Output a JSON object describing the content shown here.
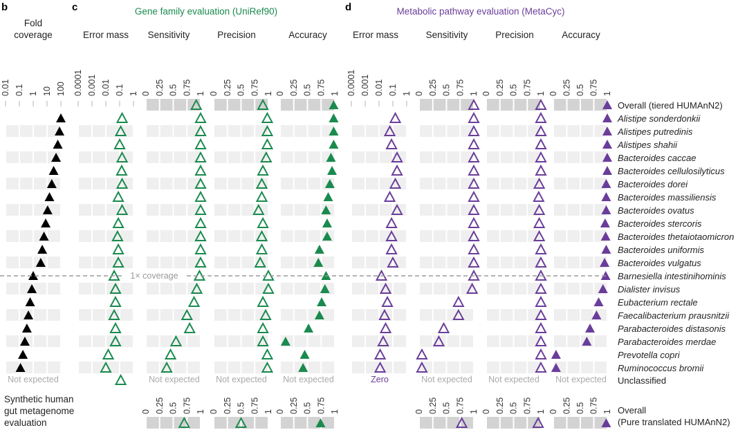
{
  "panels": {
    "b": {
      "letter": "b",
      "title_line1": "Fold",
      "title_line2": "coverage"
    },
    "c": {
      "letter": "c",
      "title": "Gene family evaluation (UniRef90)",
      "color": "#1a8a4e"
    },
    "d": {
      "letter": "d",
      "title": "Metabolic pathway evaluation (MetaCyc)",
      "color": "#6a3d9a"
    }
  },
  "metric_headers": {
    "c": [
      "Error mass",
      "Sensitivity",
      "Precision",
      "Accuracy"
    ],
    "d": [
      "Error mass",
      "Sensitivity",
      "Precision",
      "Accuracy"
    ]
  },
  "ticks": {
    "log_fold": [
      "0.01",
      "0.1",
      "1",
      "10",
      "100"
    ],
    "log_error": [
      "0.0001",
      "0.001",
      "0.01",
      "0.1",
      "1"
    ],
    "linear": [
      "0",
      "0.25",
      "0.5",
      "0.75",
      "1"
    ]
  },
  "coverage_line_label": "1× coverage",
  "not_expected_label": "Not expected",
  "zero_label": "Zero",
  "bottom": {
    "caption_line1": "Synthetic human",
    "caption_line2": "gut metagenome",
    "caption_line3": "evaluation",
    "row_label_line1": "Overall",
    "row_label_line2": "(Pure translated HUMAnN2)"
  },
  "chart_data": {
    "type": "scatter",
    "title": "Synthetic human gut metagenome evaluation",
    "rows": [
      "Overall (tiered HUMAnN2)",
      "Alistipe sonderdonkii",
      "Alistipes putredinis",
      "Alistipes shahii",
      "Bacteroides caccae",
      "Bacteroides cellulosilyticus",
      "Bacteroides dorei",
      "Bacteroides massiliensis",
      "Bacteroides ovatus",
      "Bacteroides stercoris",
      "Bacteroides thetaiotaomicron",
      "Bacteroides uniformis",
      "Bacteroides vulgatus",
      "Barnesiella intestinihominis",
      "Dialister invisus",
      "Eubacterium rectale",
      "Faecalibacterium prausnitzii",
      "Parabacteroides distasonis",
      "Parabacteroides merdae",
      "Prevotella copri",
      "Ruminococcus bromii",
      "Unclassified"
    ],
    "italic_rows": [
      false,
      true,
      true,
      true,
      true,
      true,
      true,
      true,
      true,
      true,
      true,
      true,
      true,
      true,
      true,
      true,
      true,
      true,
      true,
      true,
      true,
      false
    ],
    "fold_coverage": {
      "scale": "log",
      "xlim": [
        0.01,
        100
      ],
      "values": [
        null,
        100,
        80,
        60,
        45,
        30,
        22,
        15,
        11,
        8,
        6,
        4.5,
        3.5,
        1.0,
        0.8,
        0.6,
        0.45,
        0.35,
        0.25,
        0.18,
        0.12,
        null
      ]
    },
    "series": [
      {
        "name": "Gene family Error mass",
        "panel": "c",
        "scale": "log",
        "xlim": [
          0.0001,
          1
        ],
        "marker": "open",
        "values": [
          null,
          0.15,
          0.12,
          0.1,
          0.15,
          0.14,
          0.15,
          0.08,
          0.15,
          0.08,
          0.07,
          0.08,
          0.08,
          0.04,
          0.05,
          0.05,
          0.04,
          0.05,
          0.05,
          0.015,
          0.01,
          0.12
        ]
      },
      {
        "name": "Gene family Sensitivity",
        "panel": "c",
        "scale": "linear",
        "xlim": [
          0,
          1
        ],
        "marker": "open",
        "values": [
          0.92,
          1.0,
          1.0,
          1.0,
          1.0,
          1.0,
          1.0,
          1.0,
          1.0,
          1.0,
          1.0,
          1.0,
          1.0,
          0.98,
          0.93,
          0.88,
          0.75,
          0.8,
          0.55,
          0.45,
          0.38,
          null
        ]
      },
      {
        "name": "Gene family Precision",
        "panel": "c",
        "scale": "linear",
        "xlim": [
          0,
          1
        ],
        "marker": "open",
        "values": [
          0.9,
          0.98,
          0.98,
          0.98,
          0.96,
          0.9,
          0.88,
          0.88,
          0.82,
          0.9,
          0.88,
          0.88,
          0.85,
          1.0,
          1.0,
          0.9,
          0.95,
          0.9,
          0.9,
          0.98,
          0.98,
          null
        ]
      },
      {
        "name": "Gene family Accuracy",
        "panel": "c",
        "scale": "linear",
        "xlim": [
          0,
          1
        ],
        "marker": "filled",
        "values": [
          0.98,
          0.98,
          0.98,
          0.98,
          0.93,
          0.95,
          0.91,
          0.88,
          0.84,
          0.86,
          0.86,
          0.72,
          0.7,
          0.84,
          0.82,
          0.76,
          0.72,
          0.52,
          0.1,
          0.45,
          0.42,
          null
        ]
      },
      {
        "name": "Metabolic pathway Error mass",
        "panel": "d",
        "scale": "log",
        "xlim": [
          0.0001,
          1
        ],
        "marker": "open",
        "values": [
          null,
          0.15,
          0.06,
          0.08,
          0.2,
          0.2,
          0.15,
          0.06,
          0.2,
          0.08,
          0.08,
          0.08,
          0.1,
          0.015,
          0.03,
          0.04,
          0.025,
          0.03,
          0.02,
          0.012,
          0.012,
          null
        ]
      },
      {
        "name": "Metabolic pathway Sensitivity",
        "panel": "d",
        "scale": "linear",
        "xlim": [
          0,
          1
        ],
        "marker": "open",
        "values": [
          1.0,
          1.0,
          1.0,
          1.0,
          1.0,
          1.0,
          1.0,
          1.0,
          1.0,
          1.0,
          1.0,
          1.0,
          1.0,
          1.0,
          0.97,
          0.72,
          0.72,
          0.45,
          0.36,
          0.05,
          0.05,
          null
        ]
      },
      {
        "name": "Metabolic pathway Precision",
        "panel": "d",
        "scale": "linear",
        "xlim": [
          0,
          1
        ],
        "marker": "open",
        "values": [
          1.0,
          1.0,
          1.0,
          1.0,
          1.0,
          1.0,
          0.97,
          0.96,
          0.97,
          0.97,
          0.97,
          1.0,
          1.0,
          1.0,
          1.0,
          1.0,
          1.0,
          1.0,
          1.0,
          1.0,
          1.0,
          null
        ]
      },
      {
        "name": "Metabolic pathway Accuracy",
        "panel": "d",
        "scale": "linear",
        "xlim": [
          0,
          1
        ],
        "marker": "filled",
        "values": [
          1.0,
          1.0,
          1.0,
          1.0,
          1.0,
          1.0,
          0.98,
          0.98,
          0.98,
          0.96,
          0.97,
          0.98,
          0.95,
          0.97,
          0.92,
          0.84,
          0.8,
          0.68,
          0.62,
          0.05,
          0.05,
          null
        ]
      }
    ],
    "bottom_overall": {
      "label": "Overall (Pure translated HUMAnN2)",
      "c": {
        "Sensitivity": 0.7,
        "Precision": 0.5,
        "Accuracy": 0.74
      },
      "d": {
        "Sensitivity": 0.78,
        "Precision": 0.95,
        "Accuracy": 0.98
      }
    },
    "annotations": {
      "coverage_threshold": "1× coverage",
      "not_expected_cells": [
        "fold_coverage",
        "Gene family Sensitivity",
        "Gene family Precision",
        "Gene family Accuracy",
        "Metabolic pathway Sensitivity",
        "Metabolic pathway Precision",
        "Metabolic pathway Accuracy"
      ],
      "zero_cells": [
        "Metabolic pathway Error mass"
      ]
    }
  }
}
